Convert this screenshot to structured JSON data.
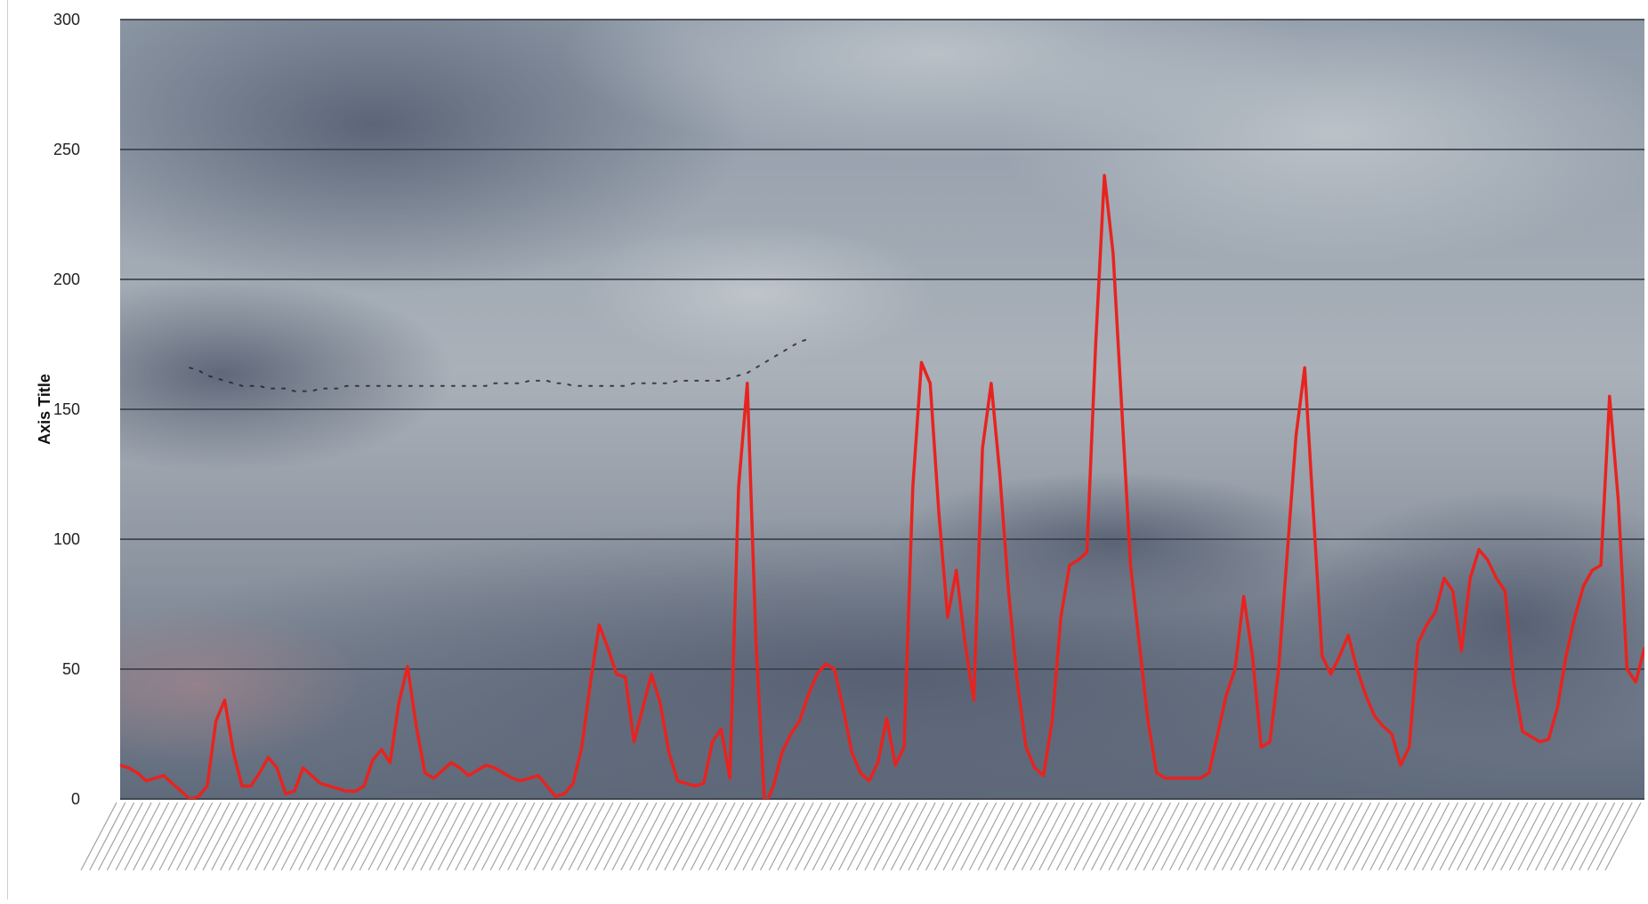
{
  "chart_data": {
    "type": "line",
    "ylabel": "Axis Title",
    "ylim": [
      0,
      300
    ],
    "yticks": [
      0,
      50,
      100,
      150,
      200,
      250,
      300
    ],
    "grid": true,
    "background": "cloudy sky photograph",
    "series": [
      {
        "color": "#e8231f",
        "values": [
          13,
          12,
          10,
          7,
          8,
          9,
          6,
          3,
          0,
          1,
          5,
          30,
          38,
          18,
          5,
          5,
          10,
          16,
          12,
          2,
          3,
          12,
          9,
          6,
          5,
          4,
          3,
          3,
          5,
          15,
          19,
          14,
          37,
          51,
          28,
          10,
          8,
          11,
          14,
          12,
          9,
          11,
          13,
          12,
          10,
          8,
          7,
          8,
          9,
          5,
          1,
          2,
          6,
          20,
          45,
          67,
          58,
          48,
          47,
          22,
          35,
          48,
          37,
          18,
          7,
          6,
          5,
          6,
          22,
          27,
          8,
          120,
          160,
          60,
          -3,
          5,
          18,
          25,
          30,
          40,
          48,
          52,
          50,
          35,
          18,
          10,
          7,
          14,
          31,
          13,
          20,
          120,
          168,
          160,
          110,
          70,
          88,
          60,
          38,
          135,
          160,
          125,
          80,
          45,
          20,
          12,
          9,
          30,
          70,
          90,
          92,
          95,
          175,
          240,
          210,
          150,
          90,
          60,
          30,
          10,
          8,
          8,
          8,
          8,
          8,
          10,
          25,
          40,
          50,
          78,
          55,
          20,
          22,
          50,
          95,
          140,
          166,
          110,
          55,
          48,
          55,
          63,
          50,
          40,
          32,
          28,
          25,
          13,
          20,
          60,
          67,
          72,
          85,
          80,
          57,
          85,
          96,
          92,
          85,
          80,
          45,
          26,
          24,
          22,
          23,
          35,
          55,
          70,
          82,
          88,
          90,
          155,
          115,
          50,
          45,
          58
        ]
      },
      {
        "color": "#222222",
        "dashed": true,
        "x_start_index": 8,
        "values": [
          166,
          165,
          163,
          162,
          161,
          160,
          159,
          159,
          159,
          158,
          158,
          158,
          157,
          157,
          157,
          158,
          158,
          158,
          159,
          159,
          159,
          159,
          159,
          159,
          159,
          159,
          159,
          159,
          159,
          159,
          159,
          159,
          159,
          159,
          159,
          160,
          160,
          160,
          160,
          161,
          161,
          161,
          160,
          160,
          159,
          159,
          159,
          159,
          159,
          159,
          159,
          160,
          160,
          160,
          160,
          160,
          161,
          161,
          161,
          161,
          161,
          161,
          162,
          163,
          164,
          166,
          168,
          170,
          172,
          174,
          176,
          177
        ]
      }
    ]
  }
}
